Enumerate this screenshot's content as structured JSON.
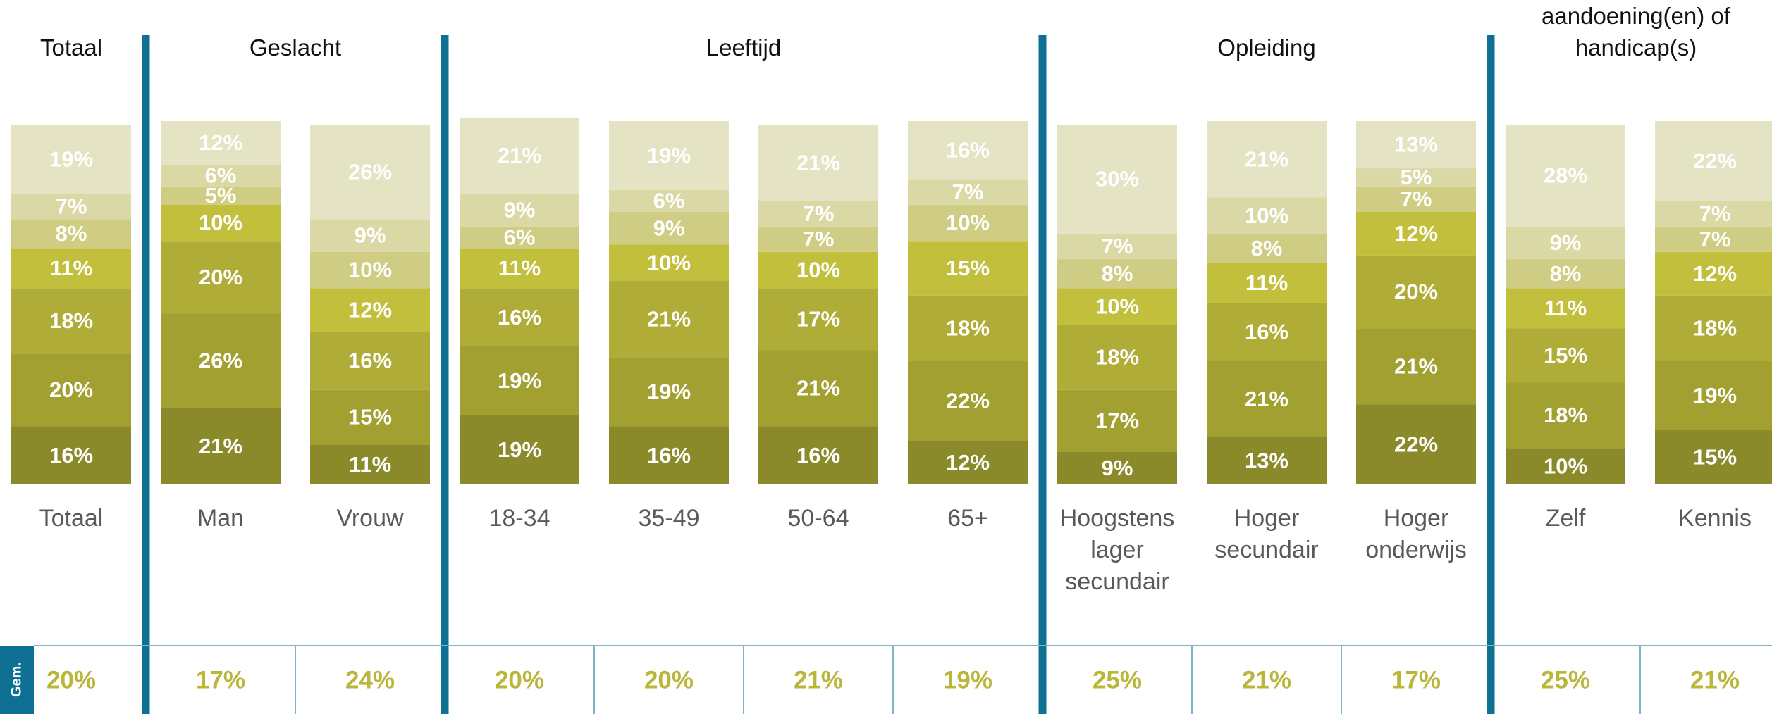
{
  "chart_data": {
    "type": "bar",
    "stacked": true,
    "groups": [
      {
        "title": "Totaal",
        "categories": [
          "Totaal"
        ]
      },
      {
        "title": "Geslacht",
        "categories": [
          "Man",
          "Vrouw"
        ]
      },
      {
        "title": "Leeftijd",
        "categories": [
          "18-34",
          "35-49",
          "50-64",
          "65+"
        ]
      },
      {
        "title": "Opleiding",
        "categories": [
          "Hoogstens lager secundair",
          "Hoger secundair",
          "Hoger onderwijs"
        ]
      },
      {
        "title": "Langdurige ziekte(n), aandoening(en) of handicap(s)",
        "categories": [
          "Zelf",
          "Kennis"
        ]
      }
    ],
    "ylim": [
      0,
      100
    ],
    "series": [
      {
        "color": "#8b8a2b",
        "values": [
          16,
          21,
          11,
          19,
          16,
          16,
          12,
          9,
          13,
          22,
          10,
          15
        ],
        "value_labels": [
          "16%",
          "21%",
          "11%",
          "19%",
          "16%",
          "16%",
          "12%",
          "9%",
          "13%",
          "22%",
          "10%",
          "15%"
        ]
      },
      {
        "color": "#a2a030",
        "values": [
          20,
          26,
          15,
          19,
          19,
          21,
          22,
          17,
          21,
          21,
          18,
          19
        ],
        "value_labels": [
          "20%",
          "26%",
          "15%",
          "19%",
          "19%",
          "21%",
          "22%",
          "17%",
          "21%",
          "21%",
          "18%",
          "19%"
        ]
      },
      {
        "color": "#afad37",
        "values": [
          18,
          20,
          16,
          16,
          21,
          17,
          18,
          18,
          16,
          20,
          15,
          18
        ],
        "value_labels": [
          "18%",
          "20%",
          "16%",
          "16%",
          "21%",
          "17%",
          "18%",
          "18%",
          "16%",
          "20%",
          "15%",
          "18%"
        ]
      },
      {
        "color": "#c2bf3c",
        "values": [
          11,
          10,
          12,
          11,
          10,
          10,
          15,
          10,
          11,
          12,
          11,
          12
        ],
        "value_labels": [
          "11%",
          "10%",
          "12%",
          "11%",
          "10%",
          "10%",
          "15%",
          "10%",
          "11%",
          "12%",
          "11%",
          "12%"
        ]
      },
      {
        "color": "#cfcd84",
        "values": [
          8,
          5,
          10,
          6,
          9,
          7,
          10,
          8,
          8,
          7,
          8,
          7
        ],
        "value_labels": [
          "8%",
          "5%",
          "10%",
          "6%",
          "9%",
          "7%",
          "10%",
          "8%",
          "8%",
          "7%",
          "8%",
          "7%"
        ]
      },
      {
        "color": "#dad8a5",
        "values": [
          7,
          6,
          9,
          9,
          6,
          7,
          7,
          7,
          10,
          5,
          9,
          7
        ],
        "value_labels": [
          "7%",
          "6%",
          "9%",
          "9%",
          "6%",
          "7%",
          "7%",
          "7%",
          "10%",
          "5%",
          "9%",
          "7%"
        ]
      },
      {
        "color": "#e4e3c3",
        "values": [
          19,
          12,
          26,
          21,
          19,
          21,
          16,
          30,
          21,
          13,
          28,
          22
        ],
        "value_labels": [
          "19%",
          "12%",
          "26%",
          "21%",
          "19%",
          "21%",
          "16%",
          "30%",
          "21%",
          "13%",
          "28%",
          "22%"
        ]
      }
    ],
    "average": {
      "label": "Gem.",
      "values": [
        20,
        17,
        24,
        20,
        20,
        21,
        19,
        25,
        21,
        17,
        25,
        21
      ],
      "value_labels": [
        "20%",
        "17%",
        "24%",
        "20%",
        "20%",
        "21%",
        "19%",
        "25%",
        "21%",
        "17%",
        "25%",
        "21%"
      ]
    }
  }
}
